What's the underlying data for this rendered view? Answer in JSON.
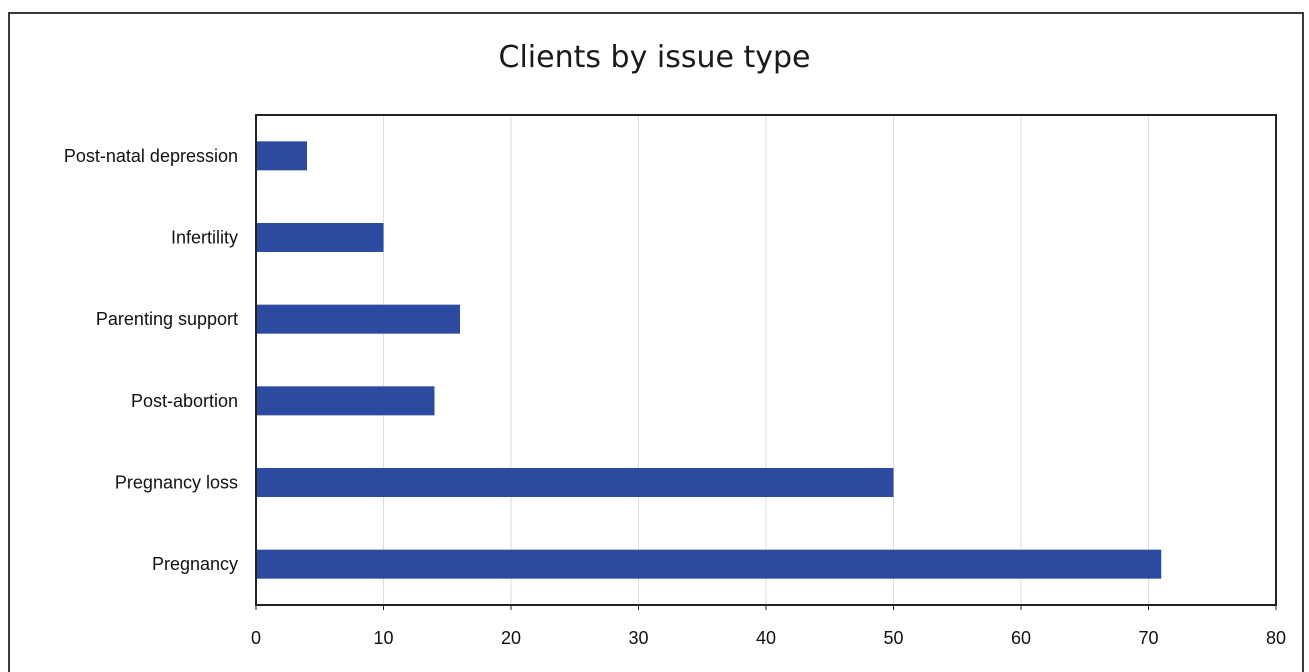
{
  "chart_data": {
    "type": "bar",
    "orientation": "horizontal",
    "title": "Clients by issue type",
    "categories": [
      "Post-natal depression",
      "Infertility",
      "Parenting support",
      "Post-abortion",
      "Pregnancy loss",
      "Pregnancy"
    ],
    "values": [
      4,
      10,
      16,
      14,
      50,
      71
    ],
    "xlabel": "",
    "ylabel": "",
    "xlim": [
      0,
      80
    ],
    "xticks": [
      0,
      10,
      20,
      30,
      40,
      50,
      60,
      70,
      80
    ],
    "grid": "vertical",
    "legend": "none",
    "bar_color": "#2b4aa0"
  }
}
